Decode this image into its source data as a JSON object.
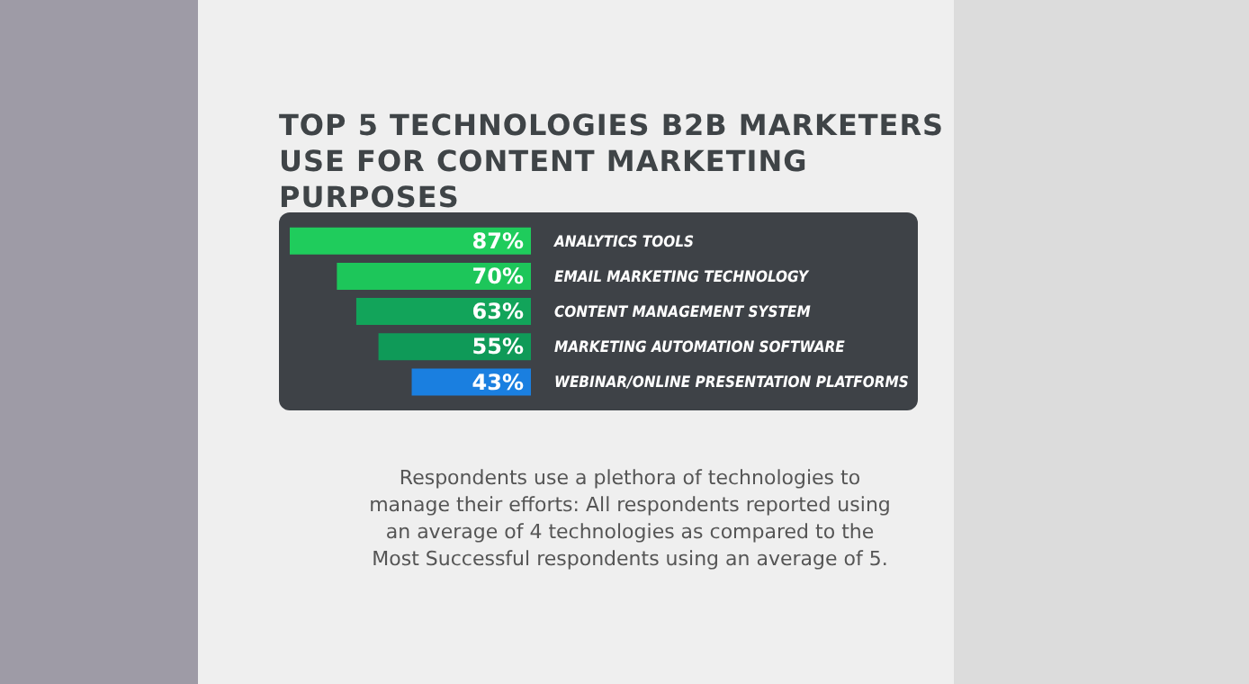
{
  "chart_data": {
    "type": "bar",
    "orientation": "horizontal",
    "title": "TOP 5 TECHNOLOGIES B2B MARKETERS USE FOR CONTENT MARKETING PURPOSES",
    "categories": [
      "ANALYTICS TOOLS",
      "EMAIL MARKETING TECHNOLOGY",
      "CONTENT MANAGEMENT SYSTEM",
      "MARKETING AUTOMATION SOFTWARE",
      "WEBINAR/ONLINE PRESENTATION PLATFORMS"
    ],
    "values": [
      87,
      70,
      63,
      55,
      43
    ],
    "colors": [
      "#1fcc5c",
      "#1dc65a",
      "#12a45a",
      "#0f9a58",
      "#1a7fe0"
    ],
    "value_labels": [
      "87%",
      "70%",
      "63%",
      "55%",
      "43%"
    ],
    "tick_labels": "y",
    "annotations": [
      "Respondents use a plethora of technologies to manage their efforts: All respondents reported using an average of 4 technologies as compared to the Most Successful respondents using an average of 5."
    ]
  }
}
